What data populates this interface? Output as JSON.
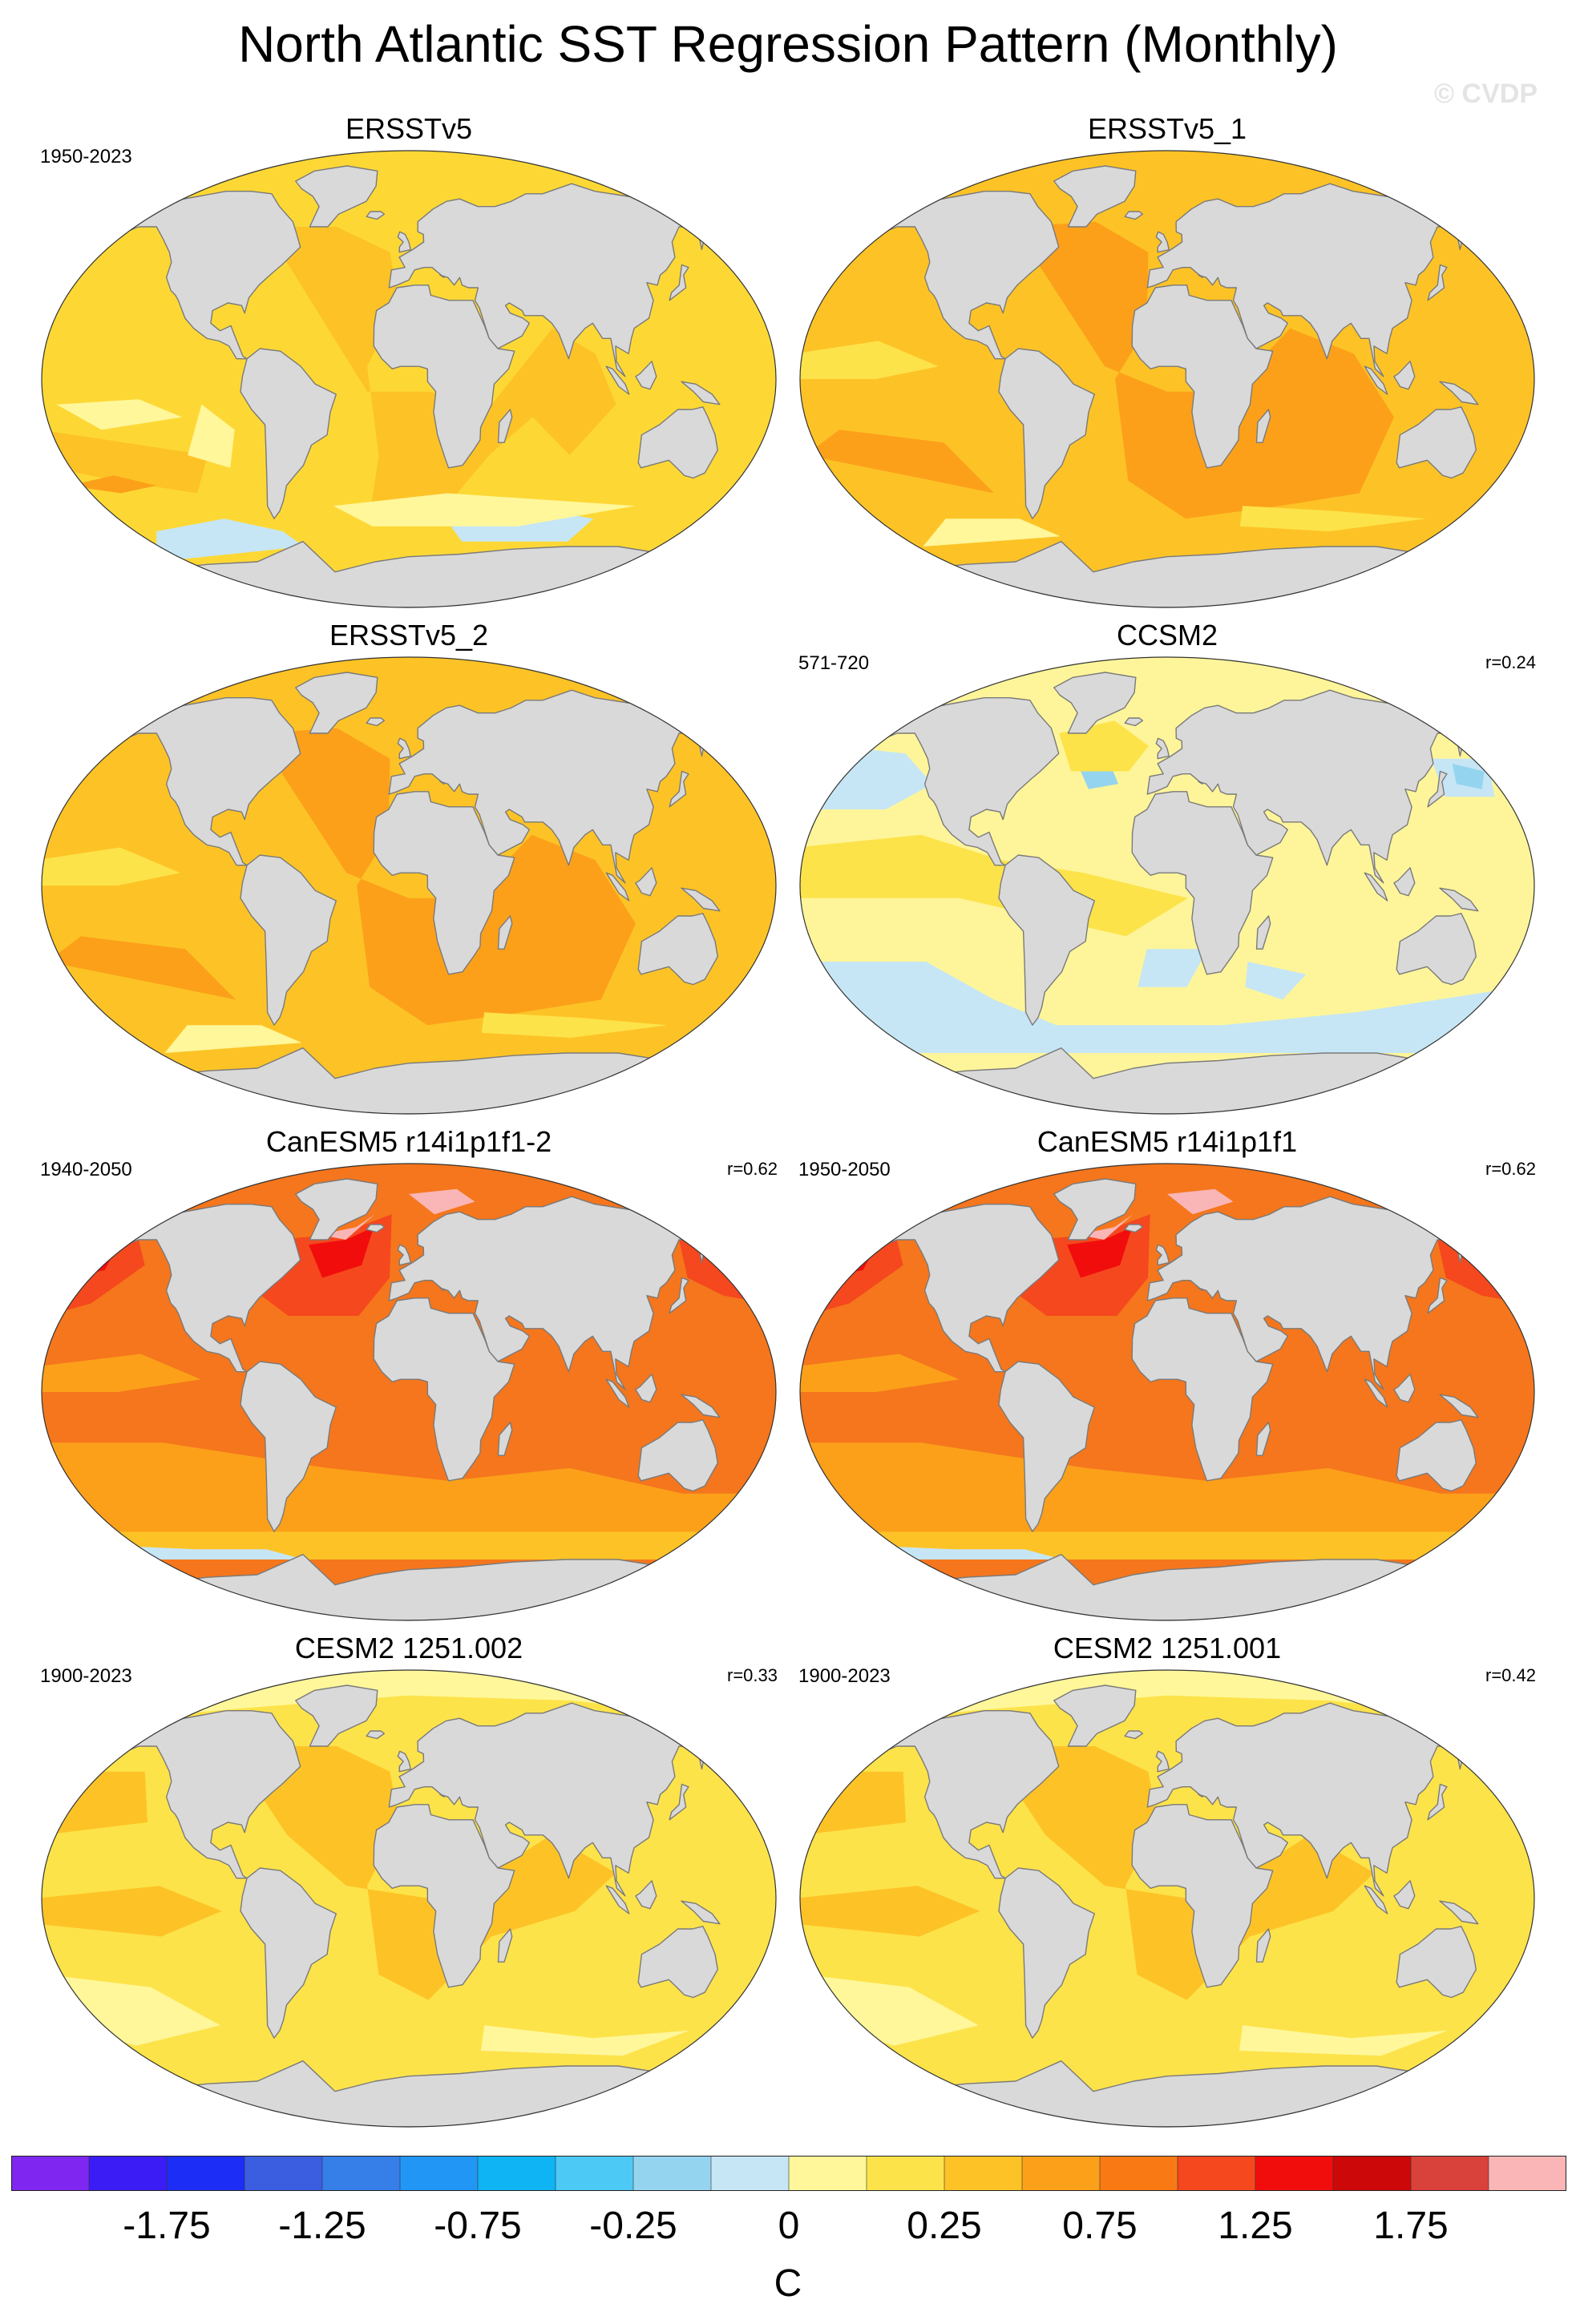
{
  "title": "North Atlantic SST Regression Pattern (Monthly)",
  "watermark": "© CVDP",
  "colors": {
    "land": "#d9d9d9",
    "coast": "#7a7a7a"
  },
  "panels": [
    {
      "title": "ERSSTv5",
      "period": "1950-2023",
      "r": "",
      "bg": "#fdd835",
      "scheme": "obs1"
    },
    {
      "title": "ERSSTv5_1",
      "period": "",
      "r": "",
      "bg": "#fdc326",
      "scheme": "obs2"
    },
    {
      "title": "ERSSTv5_2",
      "period": "",
      "r": "",
      "bg": "#fdc326",
      "scheme": "obs2"
    },
    {
      "title": "CCSM2",
      "period": "571-720",
      "r": "r=0.24",
      "bg": "#fef59a",
      "scheme": "ccsm2"
    },
    {
      "title": "CanESM5 r14i1p1f1-2",
      "period": "1940-2050",
      "r": "r=0.62",
      "bg": "#f5761c",
      "scheme": "canesm"
    },
    {
      "title": "CanESM5 r14i1p1f1",
      "period": "1950-2050",
      "r": "r=0.62",
      "bg": "#f5761c",
      "scheme": "canesm"
    },
    {
      "title": "CESM2 1251.002",
      "period": "1900-2023",
      "r": "r=0.33",
      "bg": "#fde34a",
      "scheme": "cesm"
    },
    {
      "title": "CESM2 1251.001",
      "period": "1900-2023",
      "r": "r=0.42",
      "bg": "#fde34a",
      "scheme": "cesm"
    }
  ],
  "colorbar": {
    "colors": [
      "#7f26f0",
      "#3c1cf5",
      "#1c2ef5",
      "#3b5ee0",
      "#367ee8",
      "#2196f5",
      "#0fb4f5",
      "#4cc9f5",
      "#95d4ef",
      "#c6e6f5",
      "#fff79a",
      "#fde34a",
      "#fdc326",
      "#fca01a",
      "#f97a14",
      "#f5481e",
      "#f20d0d",
      "#cc0808",
      "#d9413b",
      "#fab6b6"
    ],
    "labels": [
      "-1.75",
      "-1.25",
      "-0.75",
      "-0.25",
      "0",
      "0.25",
      "0.75",
      "1.25",
      "1.75"
    ],
    "units": "C"
  }
}
